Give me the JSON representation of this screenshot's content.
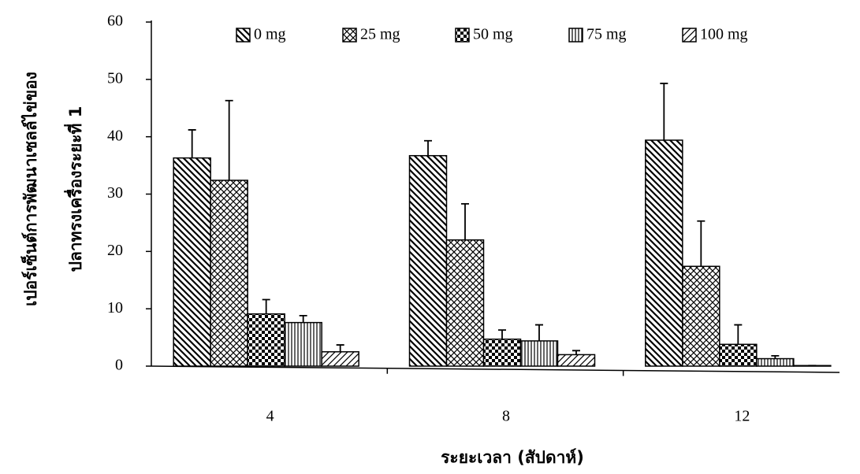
{
  "chart_data": {
    "type": "bar",
    "x_label": "ระยะเวลา (สัปดาห์)",
    "y_label": [
      "เปอร์เซ็นต์การพัฒนาเซลล์ไข่ของ",
      "ปลาทรงเครื่องระยะที่ 1"
    ],
    "categories": [
      "4",
      "8",
      "12"
    ],
    "series": [
      {
        "name": "0 mg",
        "color": "#000000",
        "values": [
          36.3,
          36.7,
          39.4
        ],
        "errors": [
          4.9,
          2.6,
          9.9
        ]
      },
      {
        "name": "25 mg",
        "color": "#000000",
        "values": [
          32.4,
          22,
          17.4
        ],
        "errors": [
          13.9,
          6.3,
          7.9
        ]
      },
      {
        "name": "50 mg",
        "color": "#000000",
        "values": [
          9.1,
          4.7,
          3.8
        ],
        "errors": [
          2.5,
          1.6,
          3.4
        ]
      },
      {
        "name": "75 mg",
        "color": "#000000",
        "values": [
          7.6,
          4.4,
          1.3
        ],
        "errors": [
          1.2,
          2.8,
          0.5
        ]
      },
      {
        "name": "100 mg",
        "color": "#000000",
        "values": [
          2.5,
          2,
          0.1
        ],
        "errors": [
          1.2,
          0.7,
          0
        ]
      }
    ],
    "ylim": [
      0,
      60
    ],
    "yticks": [
      0,
      10,
      20,
      30,
      40,
      50,
      60
    ]
  }
}
